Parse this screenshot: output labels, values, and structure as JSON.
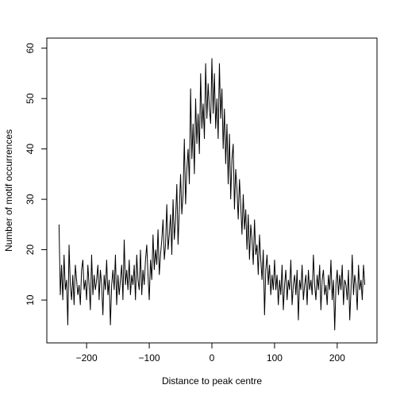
{
  "chart_data": {
    "type": "line",
    "xlabel": "Distance to peak centre",
    "ylabel": "Number of motif occurrences",
    "color": "#000000",
    "xlim": [
      -263.5,
      263.5
    ],
    "ylim": [
      1.5,
      62
    ],
    "xticks": [
      {
        "value": -200,
        "label": "−200"
      },
      {
        "value": -100,
        "label": "−100"
      },
      0,
      100,
      200
    ],
    "yticks": [
      10,
      20,
      30,
      40,
      50,
      60
    ],
    "x": [
      -244,
      -242,
      -240,
      -238,
      -236,
      -234,
      -232,
      -230,
      -228,
      -226,
      -224,
      -222,
      -220,
      -218,
      -216,
      -214,
      -212,
      -210,
      -208,
      -206,
      -204,
      -202,
      -200,
      -198,
      -196,
      -194,
      -192,
      -190,
      -188,
      -186,
      -184,
      -182,
      -180,
      -178,
      -176,
      -174,
      -172,
      -170,
      -168,
      -166,
      -164,
      -162,
      -160,
      -158,
      -156,
      -154,
      -152,
      -150,
      -148,
      -146,
      -144,
      -142,
      -140,
      -138,
      -136,
      -134,
      -132,
      -130,
      -128,
      -126,
      -124,
      -122,
      -120,
      -118,
      -116,
      -114,
      -112,
      -110,
      -108,
      -106,
      -104,
      -102,
      -100,
      -98,
      -96,
      -94,
      -92,
      -90,
      -88,
      -86,
      -84,
      -82,
      -80,
      -78,
      -76,
      -74,
      -72,
      -70,
      -68,
      -66,
      -64,
      -62,
      -60,
      -58,
      -56,
      -54,
      -52,
      -50,
      -48,
      -46,
      -44,
      -42,
      -40,
      -38,
      -36,
      -34,
      -32,
      -30,
      -28,
      -26,
      -24,
      -22,
      -20,
      -18,
      -16,
      -14,
      -12,
      -10,
      -8,
      -6,
      -4,
      -2,
      0,
      2,
      4,
      6,
      8,
      10,
      12,
      14,
      16,
      18,
      20,
      22,
      24,
      26,
      28,
      30,
      32,
      34,
      36,
      38,
      40,
      42,
      44,
      46,
      48,
      50,
      52,
      54,
      56,
      58,
      60,
      62,
      64,
      66,
      68,
      70,
      72,
      74,
      76,
      78,
      80,
      82,
      84,
      86,
      88,
      90,
      92,
      94,
      96,
      98,
      100,
      102,
      104,
      106,
      108,
      110,
      112,
      114,
      116,
      118,
      120,
      122,
      124,
      126,
      128,
      130,
      132,
      134,
      136,
      138,
      140,
      142,
      144,
      146,
      148,
      150,
      152,
      154,
      156,
      158,
      160,
      162,
      164,
      166,
      168,
      170,
      172,
      174,
      176,
      178,
      180,
      182,
      184,
      186,
      188,
      190,
      192,
      194,
      196,
      198,
      200,
      202,
      204,
      206,
      208,
      210,
      212,
      214,
      216,
      218,
      220,
      222,
      224,
      226,
      228,
      230,
      232,
      234,
      236,
      238,
      240,
      242,
      244
    ],
    "values": [
      25,
      11,
      17,
      10,
      19,
      12,
      14,
      5,
      21,
      13,
      10,
      15,
      9,
      17,
      14,
      11,
      13,
      9,
      16,
      18,
      12,
      14,
      10,
      17,
      13,
      8,
      19,
      11,
      15,
      12,
      14,
      17,
      10,
      16,
      13,
      7,
      15,
      12,
      18,
      11,
      14,
      5,
      13,
      16,
      12,
      19,
      9,
      15,
      11,
      14,
      17,
      10,
      22,
      13,
      16,
      12,
      18,
      11,
      15,
      13,
      17,
      10,
      19,
      14,
      12,
      20,
      11,
      16,
      13,
      18,
      21,
      15,
      10,
      18,
      14,
      23,
      16,
      20,
      17,
      24,
      15,
      19,
      22,
      26,
      18,
      21,
      29,
      20,
      23,
      27,
      19,
      30,
      22,
      26,
      33,
      21,
      28,
      35,
      27,
      31,
      42,
      29,
      36,
      40,
      33,
      52,
      38,
      45,
      35,
      50,
      41,
      47,
      39,
      55,
      44,
      49,
      42,
      57,
      46,
      53,
      48,
      45,
      58,
      47,
      55,
      44,
      50,
      42,
      57,
      46,
      52,
      40,
      48,
      37,
      45,
      33,
      43,
      30,
      38,
      41,
      28,
      36,
      32,
      26,
      34,
      29,
      23,
      31,
      24,
      28,
      20,
      27,
      18,
      25,
      22,
      17,
      26,
      19,
      21,
      15,
      23,
      18,
      14,
      20,
      7,
      16,
      19,
      13,
      17,
      11,
      15,
      12,
      18,
      12,
      15,
      9,
      14,
      11,
      17,
      8,
      13,
      16,
      10,
      14,
      12,
      18,
      9,
      13,
      15,
      11,
      16,
      6,
      14,
      12,
      17,
      10,
      13,
      15,
      9,
      16,
      12,
      14,
      11,
      19,
      13,
      10,
      15,
      12,
      17,
      8,
      14,
      16,
      11,
      13,
      9,
      15,
      12,
      18,
      10,
      14,
      4,
      13,
      16,
      11,
      15,
      12,
      17,
      9,
      14,
      13,
      10,
      16,
      6,
      12,
      19,
      11,
      15,
      13,
      8,
      17,
      12,
      14,
      10,
      17,
      13
    ]
  }
}
